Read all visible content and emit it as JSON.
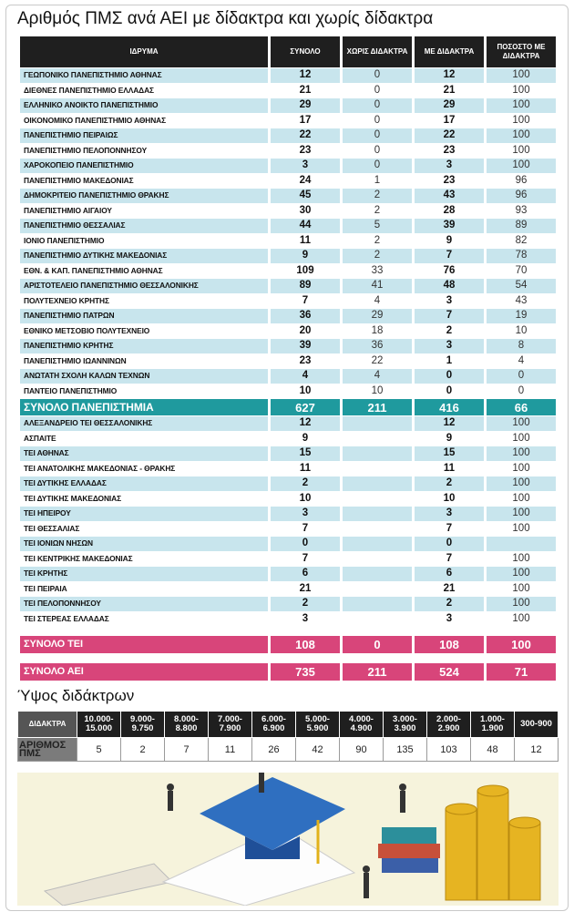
{
  "title": "Αριθμός ΠΜΣ ανά ΑΕΙ με δίδακτρα και χωρίς δίδακτρα",
  "table": {
    "header": [
      "ΙΔΡΥΜΑ",
      "ΣΥΝΟΛΟ",
      "ΧΩΡΙΣ ΔΙΔΑΚΤΡΑ",
      "ΜΕ ΔΙΔΑΚΤΡΑ",
      "ΠΟΣΟΣΤΟ ΜΕ ΔΙΔΑΚΤΡΑ"
    ],
    "university_rows": [
      [
        "ΓΕΩΠΟΝΙΚΟ ΠΑΝΕΠΙΣΤΗΜΙΟ ΑΘΗΝΑΣ",
        12,
        0,
        12,
        100
      ],
      [
        "ΔΙΕΘΝΕΣ ΠΑΝΕΠΙΣΤΗΜΙΟ ΕΛΛΑΔΑΣ",
        21,
        0,
        21,
        100
      ],
      [
        "ΕΛΛΗΝΙΚΟ ΑΝΟΙΚΤΟ ΠΑΝΕΠΙΣΤΗΜΙΟ",
        29,
        0,
        29,
        100
      ],
      [
        "ΟΙΚΟΝΟΜΙΚΟ ΠΑΝΕΠΙΣΤΗΜΙΟ ΑΘΗΝΑΣ",
        17,
        0,
        17,
        100
      ],
      [
        "ΠΑΝΕΠΙΣΤΗΜΙΟ ΠΕΙΡΑΙΩΣ",
        22,
        0,
        22,
        100
      ],
      [
        "ΠΑΝΕΠΙΣΤΗΜΙΟ ΠΕΛΟΠΟΝΝΗΣΟΥ",
        23,
        0,
        23,
        100
      ],
      [
        "ΧΑΡΟΚΟΠΕΙΟ ΠΑΝΕΠΙΣΤΗΜΙΟ",
        3,
        0,
        3,
        100
      ],
      [
        "ΠΑΝΕΠΙΣΤΗΜΙΟ ΜΑΚΕΔΟΝΙΑΣ",
        24,
        1,
        23,
        96
      ],
      [
        "ΔΗΜΟΚΡΙΤΕΙΟ ΠΑΝΕΠΙΣΤΗΜΙΟ ΘΡΑΚΗΣ",
        45,
        2,
        43,
        96
      ],
      [
        "ΠΑΝΕΠΙΣΤΗΜΙΟ ΑΙΓΑΙΟΥ",
        30,
        2,
        28,
        93
      ],
      [
        "ΠΑΝΕΠΙΣΤΗΜΙΟ ΘΕΣΣΑΛΙΑΣ",
        44,
        5,
        39,
        89
      ],
      [
        "ΙΟΝΙΟ ΠΑΝΕΠΙΣΤΗΜΙΟ",
        11,
        2,
        9,
        82
      ],
      [
        "ΠΑΝΕΠΙΣΤΗΜΙΟ ΔΥΤΙΚΗΣ ΜΑΚΕΔΟΝΙΑΣ",
        9,
        2,
        7,
        78
      ],
      [
        "ΕΘΝ. & ΚΑΠ. ΠΑΝΕΠΙΣΤΗΜΙΟ ΑΘΗΝΑΣ",
        109,
        33,
        76,
        70
      ],
      [
        "ΑΡΙΣΤΟΤΕΛΕΙΟ ΠΑΝΕΠΙΣΤΗΜΙΟ ΘΕΣΣΑΛΟΝΙΚΗΣ",
        89,
        41,
        48,
        54
      ],
      [
        "ΠΟΛΥΤΕΧΝΕΙΟ ΚΡΗΤΗΣ",
        7,
        4,
        3,
        43
      ],
      [
        "ΠΑΝΕΠΙΣΤΗΜΙΟ ΠΑΤΡΩΝ",
        36,
        29,
        7,
        19
      ],
      [
        "ΕΘΝΙΚΟ ΜΕΤΣΟΒΙΟ ΠΟΛΥΤΕΧΝΕΙΟ",
        20,
        18,
        2,
        10
      ],
      [
        "ΠΑΝΕΠΙΣΤΗΜΙΟ ΚΡΗΤΗΣ",
        39,
        36,
        3,
        8
      ],
      [
        "ΠΑΝΕΠΙΣΤΗΜΙΟ ΙΩΑΝΝΙΝΩΝ",
        23,
        22,
        1,
        4
      ],
      [
        "ΑΝΩΤΑΤΗ ΣΧΟΛΗ ΚΑΛΩΝ ΤΕΧΝΩΝ",
        4,
        4,
        0,
        0
      ],
      [
        "ΠΑΝΤΕΙΟ ΠΑΝΕΠΙΣΤΗΜΙΟ",
        10,
        10,
        0,
        0
      ]
    ],
    "university_total": [
      "ΣΥΝΟΛΟ ΠΑΝΕΠΙΣΤΗΜΙΑ",
      627,
      211,
      416,
      66
    ],
    "tei_rows": [
      [
        "ΑΛΕΞΑΝΔΡΕΙΟ ΤΕΙ ΘΕΣΣΑΛΟΝΙΚΗΣ",
        12,
        null,
        12,
        100
      ],
      [
        "ΑΣΠΑΙΤΕ",
        9,
        null,
        9,
        100
      ],
      [
        "ΤΕΙ ΑΘΗΝΑΣ",
        15,
        null,
        15,
        100
      ],
      [
        "ΤΕΙ ΑΝΑΤΟΛΙΚΗΣ ΜΑΚΕΔΟΝΙΑΣ - ΘΡΑΚΗΣ",
        11,
        null,
        11,
        100
      ],
      [
        "ΤΕΙ ΔΥΤΙΚΗΣ ΕΛΛΑΔΑΣ",
        2,
        null,
        2,
        100
      ],
      [
        "ΤΕΙ ΔΥΤΙΚΗΣ ΜΑΚΕΔΟΝΙΑΣ",
        10,
        null,
        10,
        100
      ],
      [
        "ΤΕΙ ΗΠΕΙΡΟΥ",
        3,
        null,
        3,
        100
      ],
      [
        "ΤΕΙ ΘΕΣΣΑΛΙΑΣ",
        7,
        null,
        7,
        100
      ],
      [
        "ΤΕΙ ΙΟΝΙΩΝ ΝΗΣΩΝ",
        0,
        null,
        0,
        null
      ],
      [
        "ΤΕΙ ΚΕΝΤΡΙΚΗΣ ΜΑΚΕΔΟΝΙΑΣ",
        7,
        null,
        7,
        100
      ],
      [
        "ΤΕΙ ΚΡΗΤΗΣ",
        6,
        null,
        6,
        100
      ],
      [
        "ΤΕΙ ΠΕΙΡΑΙΑ",
        21,
        null,
        21,
        100
      ],
      [
        "ΤΕΙ ΠΕΛΟΠΟΝΝΗΣΟΥ",
        2,
        null,
        2,
        100
      ],
      [
        "ΤΕΙ ΣΤΕΡΕΑΣ ΕΛΛΑΔΑΣ",
        3,
        null,
        3,
        100
      ]
    ],
    "tei_total": [
      "ΣΥΝΟΛΟ ΤΕΙ",
      108,
      0,
      108,
      100
    ],
    "aei_total": [
      "ΣΥΝΟΛΟ ΑΕΙ",
      735,
      211,
      524,
      71
    ]
  },
  "fees": {
    "title": "Ύψος διδάκτρων",
    "row_labels": [
      "ΔΙΔΑΚΤΡΑ",
      "ΑΡΙΘΜΟΣ ΠΜΣ"
    ],
    "ranges": [
      "10.000-15.000",
      "9.000-9.750",
      "8.000-8.800",
      "7.000-7.900",
      "6.000-6.900",
      "5.000-5.900",
      "4.000-4.900",
      "3.000-3.900",
      "2.000-2.900",
      "1.000-1.900",
      "300-900"
    ],
    "counts": [
      5,
      2,
      7,
      11,
      26,
      42,
      90,
      135,
      103,
      48,
      12
    ]
  }
}
